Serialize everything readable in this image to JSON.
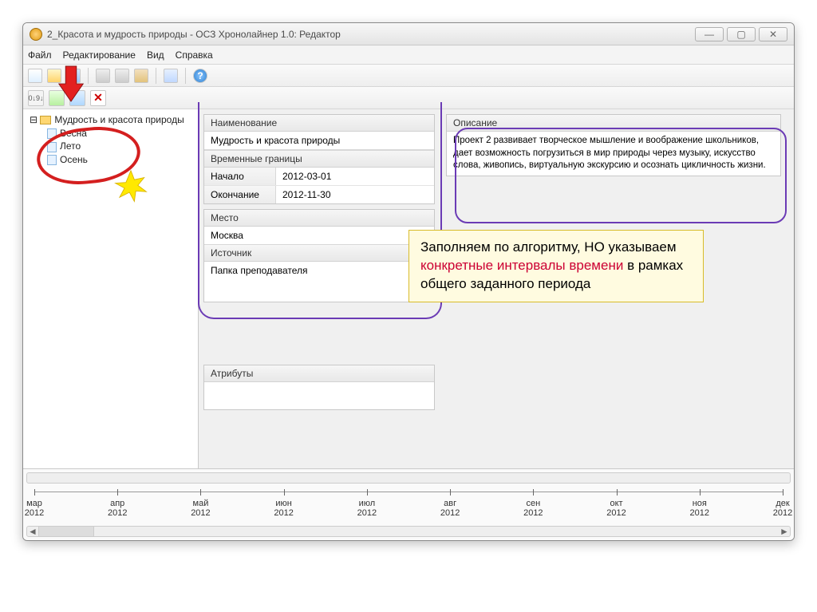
{
  "window": {
    "title": "2_Красота и мудрость природы - ОСЗ Хронолайнер 1.0: Редактор",
    "btn_min": "—",
    "btn_max": "▢",
    "btn_close": "✕"
  },
  "menu": {
    "file": "Файл",
    "edit": "Редактирование",
    "view": "Вид",
    "help": "Справка"
  },
  "toolbar2": {
    "sort": "0↓9↓",
    "del": "✕"
  },
  "tree": {
    "root": "Мудрость и красота природы",
    "items": [
      "Весна",
      "Лето",
      "Осень"
    ]
  },
  "form": {
    "name_hdr": "Наименование",
    "name_val": "Мудрость и красота природы",
    "timebox_hdr": "Временные границы",
    "start_lbl": "Начало",
    "start_val": "2012-03-01",
    "end_lbl": "Окончание",
    "end_val": "2012-11-30",
    "place_hdr": "Место",
    "place_val": "Москва",
    "source_hdr": "Источник",
    "source_val": "Папка преподавателя",
    "attr_hdr": "Атрибуты",
    "desc_hdr": "Описание",
    "desc_val": "Проект 2 развивает творческое мышление и воображение школьников, дает возможность погрузиться в мир природы через музыку, искусство слова, живопись, виртуальную экскурсию и осознать цикличность жизни."
  },
  "timeline": {
    "year": "2012",
    "months": [
      "мар",
      "апр",
      "май",
      "июн",
      "июл",
      "авг",
      "сен",
      "окт",
      "ноя",
      "дек"
    ]
  },
  "callout": {
    "t1": "Заполняем по алгоритму, НО указываем ",
    "t2": "конкретные интервалы времени",
    "t3": " в рамках общего заданного периода"
  }
}
